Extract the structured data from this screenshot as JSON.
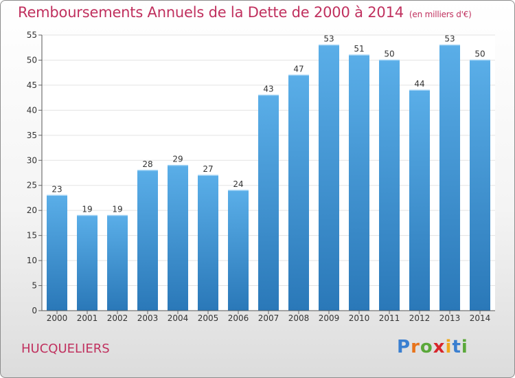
{
  "header": {
    "title": "Remboursements Annuels de la Dette de 2000 à 2014",
    "unit": "(en milliers d'€)"
  },
  "footer": {
    "place": "HUCQUELIERS",
    "logo_letters": [
      {
        "ch": "P",
        "color": "#3a7fd0"
      },
      {
        "ch": "r",
        "color": "#e8731a"
      },
      {
        "ch": "o",
        "color": "#5aa83a"
      },
      {
        "ch": "x",
        "color": "#d7262b"
      },
      {
        "ch": "i",
        "color": "#f0a81c"
      },
      {
        "ch": "t",
        "color": "#3a7fd0"
      },
      {
        "ch": "i",
        "color": "#5aa83a"
      }
    ]
  },
  "chart_data": {
    "type": "bar",
    "title": "Remboursements Annuels de la Dette de 2000 à 2014",
    "subtitle": "(en milliers d'€)",
    "categories": [
      "2000",
      "2001",
      "2002",
      "2003",
      "2004",
      "2005",
      "2006",
      "2007",
      "2008",
      "2009",
      "2010",
      "2011",
      "2012",
      "2013",
      "2014"
    ],
    "values": [
      23,
      19,
      19,
      28,
      29,
      27,
      24,
      43,
      47,
      53,
      51,
      50,
      44,
      53,
      50
    ],
    "ylim": [
      0,
      55
    ],
    "yticks": [
      0,
      5,
      10,
      15,
      20,
      25,
      30,
      35,
      40,
      45,
      50,
      55
    ],
    "grid": true,
    "bar_color_top": "#5aaee8",
    "bar_color_bottom": "#2a78b8"
  }
}
